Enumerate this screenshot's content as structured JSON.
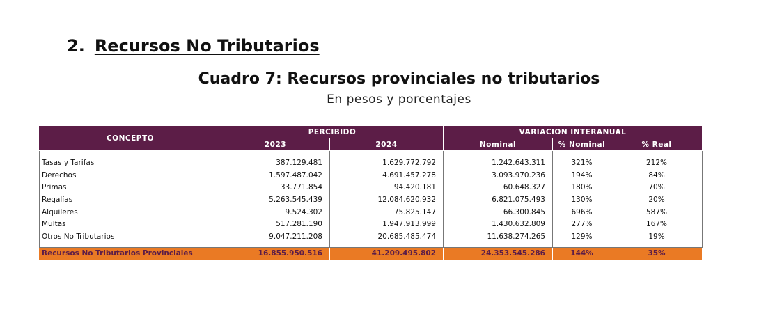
{
  "section": {
    "number": "2.",
    "title": "Recursos No Tributarios"
  },
  "table_title": "Cuadro 7: Recursos provinciales no tributarios",
  "table_subtitle": "En pesos y porcentajes",
  "header": {
    "concepto": "CONCEPTO",
    "percibido": "PERCIBIDO",
    "variacion": "VARIACION INTERANUAL",
    "col_2023": "2023",
    "col_2024": "2024",
    "col_nominal": "Nominal",
    "col_pct_nominal": "% Nominal",
    "col_pct_real": "% Real"
  },
  "rows": [
    {
      "concepto": "Tasas y Tarifas",
      "y2023": "387.129.481",
      "y2024": "1.629.772.792",
      "nominal": "1.242.643.311",
      "pct_nominal": "321%",
      "pct_real": "212%"
    },
    {
      "concepto": "Derechos",
      "y2023": "1.597.487.042",
      "y2024": "4.691.457.278",
      "nominal": "3.093.970.236",
      "pct_nominal": "194%",
      "pct_real": "84%"
    },
    {
      "concepto": "Primas",
      "y2023": "33.771.854",
      "y2024": "94.420.181",
      "nominal": "60.648.327",
      "pct_nominal": "180%",
      "pct_real": "70%"
    },
    {
      "concepto": "Regalías",
      "y2023": "5.263.545.439",
      "y2024": "12.084.620.932",
      "nominal": "6.821.075.493",
      "pct_nominal": "130%",
      "pct_real": "20%"
    },
    {
      "concepto": "Alquileres",
      "y2023": "9.524.302",
      "y2024": "75.825.147",
      "nominal": "66.300.845",
      "pct_nominal": "696%",
      "pct_real": "587%"
    },
    {
      "concepto": "Multas",
      "y2023": "517.281.190",
      "y2024": "1.947.913.999",
      "nominal": "1.430.632.809",
      "pct_nominal": "277%",
      "pct_real": "167%"
    },
    {
      "concepto": "Otros No Tributarios",
      "y2023": "9.047.211.208",
      "y2024": "20.685.485.474",
      "nominal": "11.638.274.265",
      "pct_nominal": "129%",
      "pct_real": "19%"
    }
  ],
  "total": {
    "concepto": "Recursos No Tributarios Provinciales",
    "y2023": "16.855.950.516",
    "y2024": "41.209.495.802",
    "nominal": "24.353.545.286",
    "pct_nominal": "144%",
    "pct_real": "35%"
  },
  "colors": {
    "header_bg": "#5c1d47",
    "total_bg": "#ea7a24"
  }
}
